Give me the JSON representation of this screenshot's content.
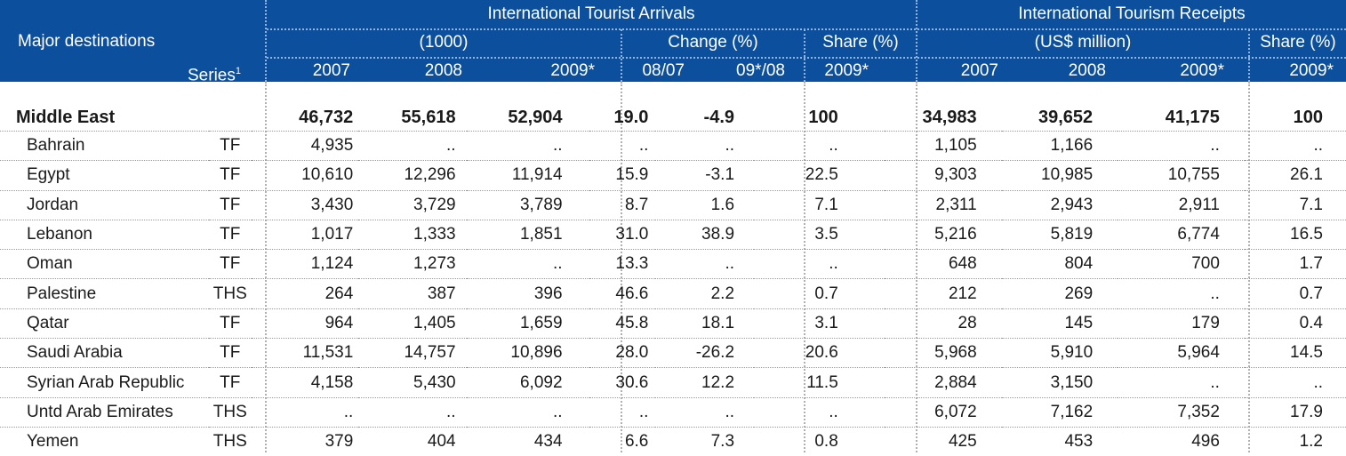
{
  "header": {
    "major_destinations": "Major destinations",
    "series_label": "Series",
    "series_footnote": "1",
    "arrivals_title": "International Tourist Arrivals",
    "arrivals_unit": "(1000)",
    "change_label": "Change (%)",
    "share_label": "Share (%)",
    "receipts_title": "International Tourism Receipts",
    "receipts_unit": "(US$ million)",
    "receipts_share_label": "Share (%)",
    "arrivals_years": [
      "2007",
      "2008",
      "2009*"
    ],
    "change_periods": [
      "08/07",
      "09*/08"
    ],
    "share_year": "2009*",
    "receipts_years": [
      "2007",
      "2008",
      "2009*"
    ],
    "receipts_share_year": "2009*"
  },
  "total": {
    "name": "Middle East",
    "series": "",
    "values": [
      "46,732",
      "55,618",
      "52,904",
      "19.0",
      "-4.9",
      "100",
      "34,983",
      "39,652",
      "41,175",
      "100"
    ]
  },
  "rows": [
    {
      "name": "Bahrain",
      "series": "TF",
      "values": [
        "4,935",
        "..",
        "..",
        "..",
        "..",
        "..",
        "1,105",
        "1,166",
        "..",
        ".."
      ]
    },
    {
      "name": "Egypt",
      "series": "TF",
      "values": [
        "10,610",
        "12,296",
        "11,914",
        "15.9",
        "-3.1",
        "22.5",
        "9,303",
        "10,985",
        "10,755",
        "26.1"
      ]
    },
    {
      "name": "Jordan",
      "series": "TF",
      "values": [
        "3,430",
        "3,729",
        "3,789",
        "8.7",
        "1.6",
        "7.1",
        "2,311",
        "2,943",
        "2,911",
        "7.1"
      ]
    },
    {
      "name": "Lebanon",
      "series": "TF",
      "values": [
        "1,017",
        "1,333",
        "1,851",
        "31.0",
        "38.9",
        "3.5",
        "5,216",
        "5,819",
        "6,774",
        "16.5"
      ]
    },
    {
      "name": "Oman",
      "series": "TF",
      "values": [
        "1,124",
        "1,273",
        "..",
        "13.3",
        "..",
        "..",
        "648",
        "804",
        "700",
        "1.7"
      ]
    },
    {
      "name": "Palestine",
      "series": "THS",
      "values": [
        "264",
        "387",
        "396",
        "46.6",
        "2.2",
        "0.7",
        "212",
        "269",
        "..",
        "0.7"
      ]
    },
    {
      "name": "Qatar",
      "series": "TF",
      "values": [
        "964",
        "1,405",
        "1,659",
        "45.8",
        "18.1",
        "3.1",
        "28",
        "145",
        "179",
        "0.4"
      ]
    },
    {
      "name": "Saudi Arabia",
      "series": "TF",
      "values": [
        "11,531",
        "14,757",
        "10,896",
        "28.0",
        "-26.2",
        "20.6",
        "5,968",
        "5,910",
        "5,964",
        "14.5"
      ]
    },
    {
      "name": "Syrian Arab Republic",
      "series": "TF",
      "values": [
        "4,158",
        "5,430",
        "6,092",
        "30.6",
        "12.2",
        "11.5",
        "2,884",
        "3,150",
        "..",
        ".."
      ]
    },
    {
      "name": "Untd Arab Emirates",
      "series": "THS",
      "values": [
        "..",
        "..",
        "..",
        "..",
        "..",
        "..",
        "6,072",
        "7,162",
        "7,352",
        "17.9"
      ]
    },
    {
      "name": "Yemen",
      "series": "THS",
      "values": [
        "379",
        "404",
        "434",
        "6.6",
        "7.3",
        "0.8",
        "425",
        "453",
        "496",
        "1.2"
      ]
    }
  ],
  "colors": {
    "header_bg": "#0c4f9c",
    "header_text": "#ffffff"
  }
}
